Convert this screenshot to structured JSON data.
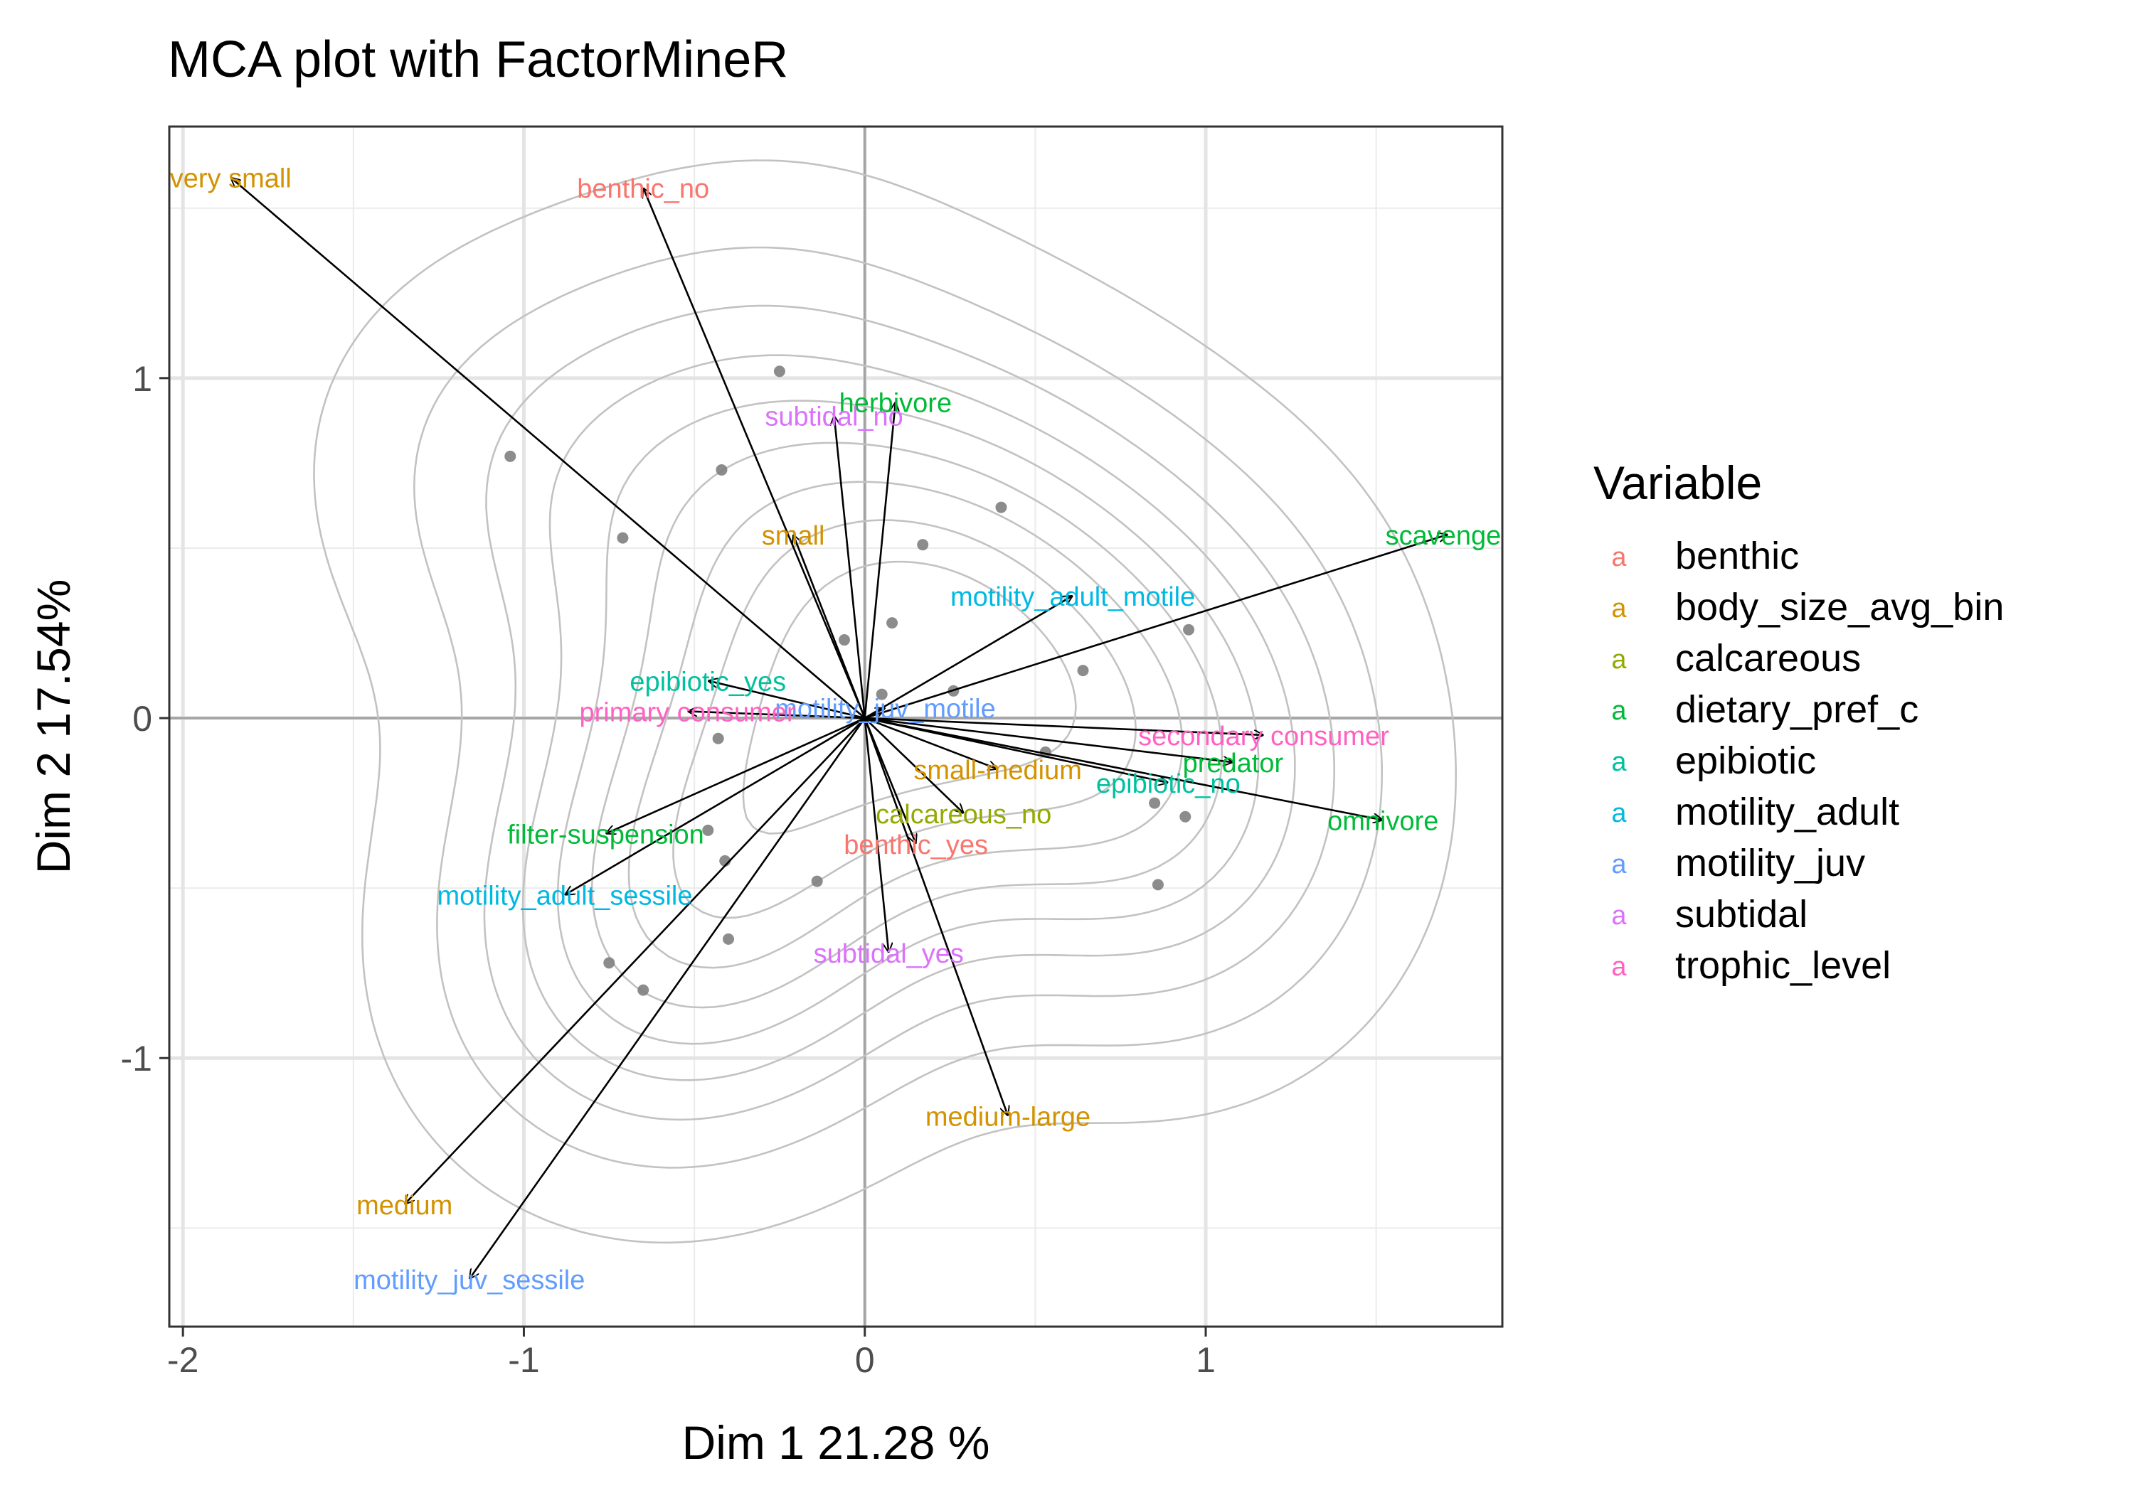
{
  "chart_data": {
    "type": "scatter",
    "title": "MCA plot with FactorMineR",
    "xlabel": "Dim 1 21.28 %",
    "ylabel": "Dim 2 17.54%",
    "xlim": [
      -2.04,
      1.87
    ],
    "ylim": [
      -1.79,
      1.74
    ],
    "x_ticks": [
      -2,
      -1,
      0,
      1
    ],
    "y_ticks": [
      -1,
      0,
      1
    ],
    "grid": true,
    "legend": {
      "title": "Variable",
      "position": "right",
      "key_glyph": "a",
      "entries": [
        {
          "name": "benthic",
          "color": "#F8766D"
        },
        {
          "name": "body_size_avg_bin",
          "color": "#D39200"
        },
        {
          "name": "calcareous",
          "color": "#93AA00"
        },
        {
          "name": "dietary_pref_c",
          "color": "#00BA38"
        },
        {
          "name": "epibiotic",
          "color": "#00C19F"
        },
        {
          "name": "motility_adult",
          "color": "#00B9E3"
        },
        {
          "name": "motility_juv",
          "color": "#619CFF"
        },
        {
          "name": "subtidal",
          "color": "#DB72FB"
        },
        {
          "name": "trophic_level",
          "color": "#FF61C3"
        }
      ]
    },
    "arrows": [
      {
        "label": "very small",
        "group": "body_size_avg_bin",
        "x": -1.86,
        "y": 1.59
      },
      {
        "label": "benthic_no",
        "group": "benthic",
        "x": -0.65,
        "y": 1.56
      },
      {
        "label": "herbivore",
        "group": "dietary_pref_c",
        "x": 0.09,
        "y": 0.93
      },
      {
        "label": "subtidal_no",
        "group": "subtidal",
        "x": -0.09,
        "y": 0.89
      },
      {
        "label": "small",
        "group": "body_size_avg_bin",
        "x": -0.21,
        "y": 0.54
      },
      {
        "label": "scavenger",
        "group": "dietary_pref_c",
        "x": 1.71,
        "y": 0.54
      },
      {
        "label": "motility_adult_motile",
        "group": "motility_adult",
        "x": 0.61,
        "y": 0.36
      },
      {
        "label": "epibiotic_yes",
        "group": "epibiotic",
        "x": -0.46,
        "y": 0.11
      },
      {
        "label": "motility_juv_motile",
        "group": "motility_juv",
        "x": 0.06,
        "y": 0.03
      },
      {
        "label": "primary consumer",
        "group": "trophic_level",
        "x": -0.52,
        "y": 0.02
      },
      {
        "label": "secondary consumer",
        "group": "trophic_level",
        "x": 1.17,
        "y": -0.05
      },
      {
        "label": "predator",
        "group": "dietary_pref_c",
        "x": 1.08,
        "y": -0.13
      },
      {
        "label": "small-medium",
        "group": "body_size_avg_bin",
        "x": 0.39,
        "y": -0.15
      },
      {
        "label": "epibiotic_no",
        "group": "epibiotic",
        "x": 0.89,
        "y": -0.19
      },
      {
        "label": "calcareous_no",
        "group": "calcareous",
        "x": 0.29,
        "y": -0.28
      },
      {
        "label": "omnivore",
        "group": "dietary_pref_c",
        "x": 1.52,
        "y": -0.3
      },
      {
        "label": "benthic_yes",
        "group": "benthic",
        "x": 0.15,
        "y": -0.37
      },
      {
        "label": "filter-suspension",
        "group": "dietary_pref_c",
        "x": -0.76,
        "y": -0.34
      },
      {
        "label": "motility_adult_sessile",
        "group": "motility_adult",
        "x": -0.88,
        "y": -0.52
      },
      {
        "label": "subtidal_yes",
        "group": "subtidal",
        "x": 0.07,
        "y": -0.69
      },
      {
        "label": "medium-large",
        "group": "body_size_avg_bin",
        "x": 0.42,
        "y": -1.17
      },
      {
        "label": "medium",
        "group": "body_size_avg_bin",
        "x": -1.35,
        "y": -1.43
      },
      {
        "label": "motility_juv_sessile",
        "group": "motility_juv",
        "x": -1.16,
        "y": -1.65
      }
    ],
    "points": [
      [
        -0.25,
        1.02
      ],
      [
        -1.04,
        0.77
      ],
      [
        -0.42,
        0.73
      ],
      [
        -0.71,
        0.53
      ],
      [
        0.4,
        0.62
      ],
      [
        0.17,
        0.51
      ],
      [
        0.95,
        0.26
      ],
      [
        0.08,
        0.28
      ],
      [
        -0.06,
        0.23
      ],
      [
        0.64,
        0.14
      ],
      [
        0.26,
        0.08
      ],
      [
        0.05,
        0.07
      ],
      [
        -0.43,
        -0.06
      ],
      [
        0.53,
        -0.1
      ],
      [
        0.85,
        -0.25
      ],
      [
        0.94,
        -0.29
      ],
      [
        -0.46,
        -0.33
      ],
      [
        -0.41,
        -0.42
      ],
      [
        -0.14,
        -0.48
      ],
      [
        0.86,
        -0.49
      ],
      [
        -0.4,
        -0.65
      ],
      [
        -0.75,
        -0.72
      ],
      [
        -0.65,
        -0.8
      ]
    ]
  }
}
